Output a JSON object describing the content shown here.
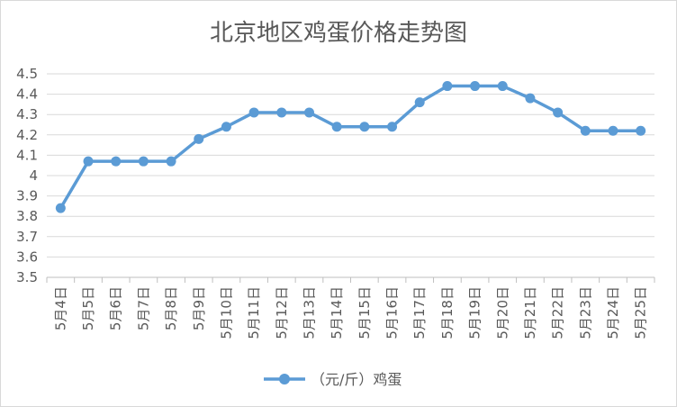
{
  "chart_data": {
    "type": "line",
    "title": "北京地区鸡蛋价格走势图",
    "xlabel": "",
    "ylabel": "",
    "ylim": [
      3.5,
      4.5
    ],
    "ytick_step": 0.1,
    "yticks": [
      "3.5",
      "3.6",
      "3.7",
      "3.8",
      "3.9",
      "4",
      "4.1",
      "4.2",
      "4.3",
      "4.4",
      "4.5"
    ],
    "grid": true,
    "legend_position": "bottom",
    "categories": [
      "5月4日",
      "5月5日",
      "5月6日",
      "5月7日",
      "5月8日",
      "5月9日",
      "5月10日",
      "5月11日",
      "5月12日",
      "5月13日",
      "5月14日",
      "5月15日",
      "5月16日",
      "5月17日",
      "5月18日",
      "5月19日",
      "5月20日",
      "5月21日",
      "5月22日",
      "5月23日",
      "5月24日",
      "5月25日"
    ],
    "series": [
      {
        "name": "（元/斤）鸡蛋",
        "color": "#5b9bd5",
        "marker": "circle",
        "values": [
          3.84,
          4.07,
          4.07,
          4.07,
          4.07,
          4.18,
          4.24,
          4.31,
          4.31,
          4.31,
          4.24,
          4.24,
          4.24,
          4.36,
          4.44,
          4.44,
          4.44,
          4.38,
          4.31,
          4.22,
          4.22,
          4.22
        ]
      }
    ]
  }
}
